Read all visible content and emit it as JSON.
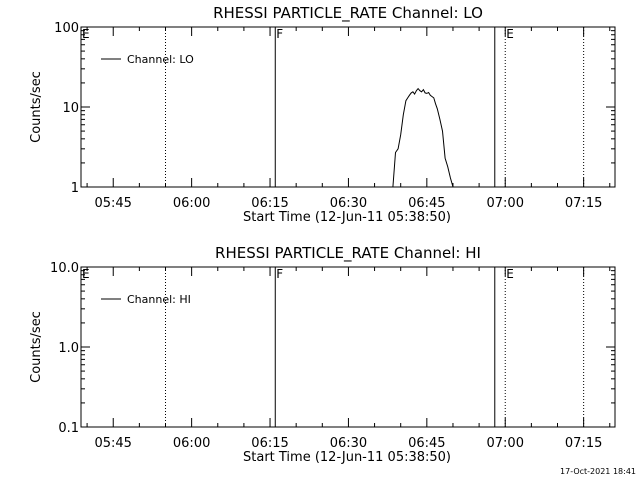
{
  "chart_data": [
    {
      "type": "line",
      "title": "RHESSI PARTICLE_RATE Channel: LO",
      "xlabel": "Start Time (12-Jun-11 05:38:50)",
      "ylabel": "Counts/sec",
      "yscale": "log",
      "ylim": [
        1,
        100
      ],
      "y_ticks": [
        "1",
        "10",
        "100"
      ],
      "y_tick_values": [
        1,
        10,
        100
      ],
      "xlim": [
        "05:38:50",
        "07:21:00"
      ],
      "x_ticks": [
        "05:45",
        "06:00",
        "06:15",
        "06:30",
        "06:45",
        "07:00",
        "07:15"
      ],
      "x_tick_values": [
        "05:45",
        "06:00",
        "06:15",
        "06:30",
        "06:45",
        "07:00",
        "07:15"
      ],
      "legend": {
        "position": "top-left",
        "entries": [
          "Channel: LO"
        ]
      },
      "grid": false,
      "event_lines": [
        {
          "time": "05:55",
          "style": "dotted",
          "label": ""
        },
        {
          "time": "06:16",
          "style": "solid",
          "label": "F"
        },
        {
          "time": "06:58",
          "style": "solid",
          "label": ""
        },
        {
          "time": "07:00",
          "style": "dotted",
          "label": "E"
        },
        {
          "time": "07:15",
          "style": "dotted",
          "label": ""
        }
      ],
      "corner_label": "E",
      "series": [
        {
          "name": "Channel: LO",
          "x": [
            "06:38:30",
            "06:39:00",
            "06:39:30",
            "06:40:00",
            "06:40:30",
            "06:41:00",
            "06:41:20",
            "06:41:40",
            "06:42:00",
            "06:42:20",
            "06:42:40",
            "06:43:00",
            "06:43:20",
            "06:43:40",
            "06:44:00",
            "06:44:20",
            "06:44:40",
            "06:45:00",
            "06:45:20",
            "06:45:40",
            "06:46:00",
            "06:46:20",
            "06:46:40",
            "06:47:00",
            "06:47:30",
            "06:48:00",
            "06:48:30",
            "06:49:00",
            "06:49:30",
            "06:50:00"
          ],
          "values": [
            1.0,
            2.7,
            3.0,
            4.5,
            8.0,
            12.0,
            13.0,
            14.0,
            15.0,
            15.5,
            14.5,
            16.0,
            17.0,
            16.0,
            15.5,
            16.5,
            15.0,
            14.8,
            15.2,
            14.0,
            13.5,
            13.0,
            11.0,
            9.5,
            7.0,
            5.0,
            2.3,
            1.8,
            1.3,
            1.0
          ]
        }
      ]
    },
    {
      "type": "line",
      "title": "RHESSI PARTICLE_RATE Channel: HI",
      "xlabel": "Start Time (12-Jun-11 05:38:50)",
      "ylabel": "Counts/sec",
      "yscale": "log",
      "ylim": [
        0.1,
        10
      ],
      "y_ticks": [
        "0.1",
        "1.0",
        "10.0"
      ],
      "y_tick_values": [
        0.1,
        1,
        10
      ],
      "xlim": [
        "05:38:50",
        "07:21:00"
      ],
      "x_ticks": [
        "05:45",
        "06:00",
        "06:15",
        "06:30",
        "06:45",
        "07:00",
        "07:15"
      ],
      "x_tick_values": [
        "05:45",
        "06:00",
        "06:15",
        "06:30",
        "06:45",
        "07:00",
        "07:15"
      ],
      "legend": {
        "position": "top-left",
        "entries": [
          "Channel: HI"
        ]
      },
      "grid": false,
      "event_lines": [
        {
          "time": "05:55",
          "style": "dotted",
          "label": ""
        },
        {
          "time": "06:16",
          "style": "solid",
          "label": "F"
        },
        {
          "time": "06:58",
          "style": "solid",
          "label": ""
        },
        {
          "time": "07:00",
          "style": "dotted",
          "label": "E"
        },
        {
          "time": "07:15",
          "style": "dotted",
          "label": ""
        }
      ],
      "corner_label": "E",
      "series": [
        {
          "name": "Channel: HI",
          "x": [],
          "values": []
        }
      ]
    }
  ],
  "footer": {
    "timestamp": "17-Oct-2021 18:41"
  }
}
